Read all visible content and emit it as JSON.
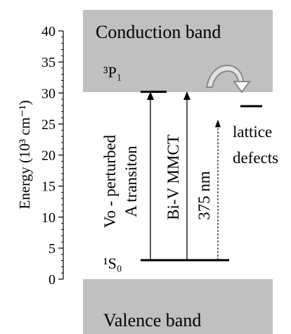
{
  "axis": {
    "label": "Energy (10³ cm⁻¹)",
    "ticks": [
      "0",
      "5",
      "10",
      "15",
      "20",
      "25",
      "30",
      "35",
      "40"
    ],
    "min": 0,
    "max": 40,
    "minor_step": 1
  },
  "bands": {
    "conduction": "Conduction band",
    "valence": "Valence band",
    "color": "#c0c0c0"
  },
  "levels": {
    "excited": {
      "label": "³P₁",
      "energy": 30.5
    },
    "ground": {
      "label": "¹S₀",
      "energy": 3.3
    },
    "defect": {
      "energy": 28
    }
  },
  "transitions": [
    {
      "label_line1": "Vo - perturbed",
      "label_line2": "A transiton",
      "style": "solid",
      "from": 3.3,
      "to": 30.5
    },
    {
      "label_line1": "Bi-V MMCT",
      "label_line2": "",
      "style": "solid",
      "from": 3.3,
      "to": 30.5
    },
    {
      "label_line1": "375 nm",
      "label_line2": "",
      "style": "dashed",
      "from": 3.3,
      "to": 26.7
    }
  ],
  "defects": {
    "line1": "lattice",
    "line2": "defects"
  },
  "icons": {
    "transfer": "curved-arrow-icon"
  }
}
